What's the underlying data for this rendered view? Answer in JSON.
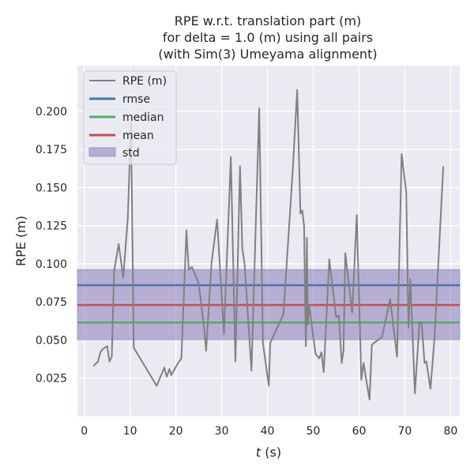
{
  "chart_data": {
    "type": "line",
    "title": [
      "RPE w.r.t. translation part (m)",
      "for delta = 1.0 (m) using all pairs",
      "(with Sim(3) Umeyama alignment)"
    ],
    "xlabel_italic": "t",
    "xlabel_rest": " (s)",
    "ylabel": "RPE (m)",
    "xlim": [
      -1.5,
      82
    ],
    "ylim": [
      0.0,
      0.23
    ],
    "xticks": [
      0,
      10,
      20,
      30,
      40,
      50,
      60,
      70,
      80
    ],
    "yticks": [
      0.025,
      0.05,
      0.075,
      0.1,
      0.125,
      0.15,
      0.175,
      0.2
    ],
    "ytick_labels": [
      "0.025",
      "0.050",
      "0.075",
      "0.100",
      "0.125",
      "0.150",
      "0.175",
      "0.200"
    ],
    "grid": true,
    "legend_position": "top-left",
    "series": [
      {
        "name": "RPE (m)",
        "color": "#808080",
        "x": [
          2.0,
          3.0,
          3.5,
          4.0,
          5.0,
          5.5,
          6.0,
          6.5,
          7.5,
          8.5,
          9.5,
          10.2,
          10.8,
          15.8,
          17.5,
          18.0,
          18.6,
          19.0,
          20.5,
          21.2,
          22.3,
          22.8,
          23.5,
          25.0,
          26.2,
          26.6,
          27.8,
          29.0,
          30.5,
          32.0,
          33.0,
          34.0,
          34.5,
          35.0,
          36.5,
          38.2,
          39.0,
          40.3,
          40.6,
          43.5,
          45.5,
          46.5,
          47.2,
          47.6,
          48.0,
          48.2,
          48.4,
          48.6,
          48.8,
          49.1,
          50.5,
          51.3,
          51.8,
          52.3,
          53.5,
          55.0,
          55.6,
          56.2,
          56.6,
          57.0,
          58.0,
          58.5,
          59.5,
          60.5,
          61.0,
          61.5,
          62.3,
          62.8,
          65.0,
          66.8,
          68.3,
          69.3,
          70.3,
          70.8,
          71.2,
          72.2,
          73.2,
          73.7,
          74.3,
          74.7,
          75.6,
          76.5,
          78.4
        ],
        "values": [
          0.033,
          0.036,
          0.042,
          0.044,
          0.046,
          0.036,
          0.039,
          0.095,
          0.113,
          0.091,
          0.13,
          0.193,
          0.045,
          0.02,
          0.032,
          0.026,
          0.031,
          0.027,
          0.035,
          0.038,
          0.122,
          0.096,
          0.098,
          0.087,
          0.057,
          0.043,
          0.101,
          0.129,
          0.054,
          0.17,
          0.036,
          0.164,
          0.11,
          0.1,
          0.03,
          0.202,
          0.048,
          0.02,
          0.048,
          0.067,
          0.16,
          0.214,
          0.133,
          0.135,
          0.125,
          0.083,
          0.046,
          0.117,
          0.06,
          0.073,
          0.041,
          0.038,
          0.042,
          0.029,
          0.103,
          0.065,
          0.066,
          0.035,
          0.043,
          0.107,
          0.081,
          0.068,
          0.132,
          0.024,
          0.035,
          0.025,
          0.011,
          0.047,
          0.052,
          0.077,
          0.039,
          0.172,
          0.147,
          0.058,
          0.09,
          0.015,
          0.062,
          0.06,
          0.035,
          0.036,
          0.018,
          0.052,
          0.164
        ]
      }
    ],
    "stats": {
      "rmse": {
        "label": "rmse",
        "value": 0.086,
        "color": "#4c72b0"
      },
      "median": {
        "label": "median",
        "value": 0.0615,
        "color": "#55a868"
      },
      "mean": {
        "label": "mean",
        "value": 0.073,
        "color": "#c44e52"
      },
      "std": {
        "label": "std",
        "low": 0.0502,
        "high": 0.0962,
        "color": "#8172b2",
        "alpha": 0.5
      }
    }
  }
}
